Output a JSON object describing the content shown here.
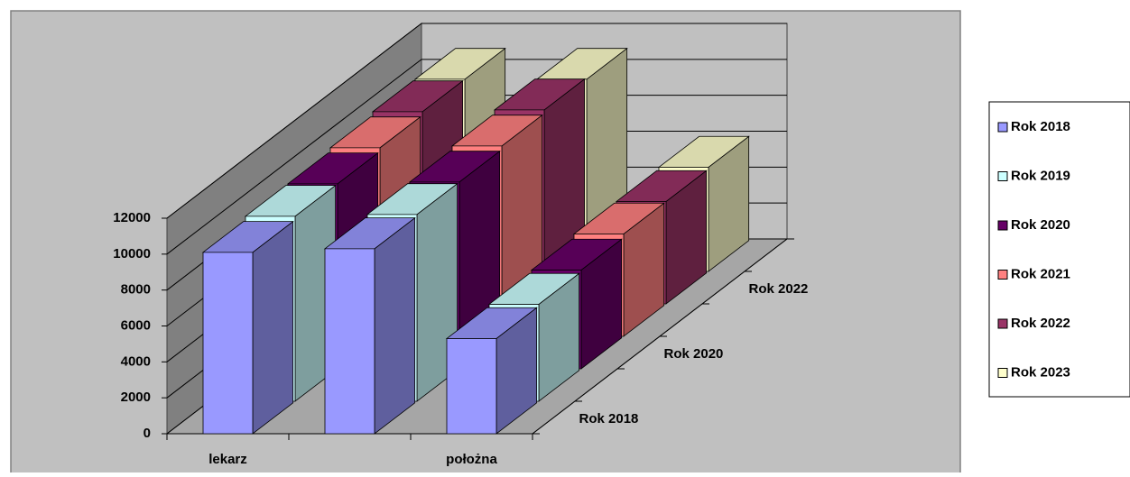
{
  "chart_data": {
    "type": "bar3d",
    "categories": [
      "lekarz",
      null,
      "położna"
    ],
    "depth_categories": [
      "Rok 2018",
      null,
      "Rok 2020",
      null,
      "Rok 2022",
      null
    ],
    "series": [
      {
        "name": "Rok 2018",
        "color": "#9999ff",
        "values": [
          10100,
          10300,
          5300
        ]
      },
      {
        "name": "Rok 2019",
        "color": "#ccffff",
        "values": [
          10300,
          10400,
          5400
        ]
      },
      {
        "name": "Rok 2020",
        "color": "#660066",
        "values": [
          10300,
          10400,
          5500
        ]
      },
      {
        "name": "Rok 2021",
        "color": "#ff8080",
        "values": [
          10500,
          10600,
          5700
        ]
      },
      {
        "name": "Rok 2022",
        "color": "#993366",
        "values": [
          10700,
          10800,
          5700
        ]
      },
      {
        "name": "Rok 2023",
        "color": "#ffffcc",
        "values": [
          10700,
          10700,
          5800
        ]
      }
    ],
    "ylim": [
      0,
      12000
    ],
    "yticks": [
      0,
      2000,
      4000,
      6000,
      8000,
      10000,
      12000
    ],
    "grid": true,
    "legend": "right"
  }
}
